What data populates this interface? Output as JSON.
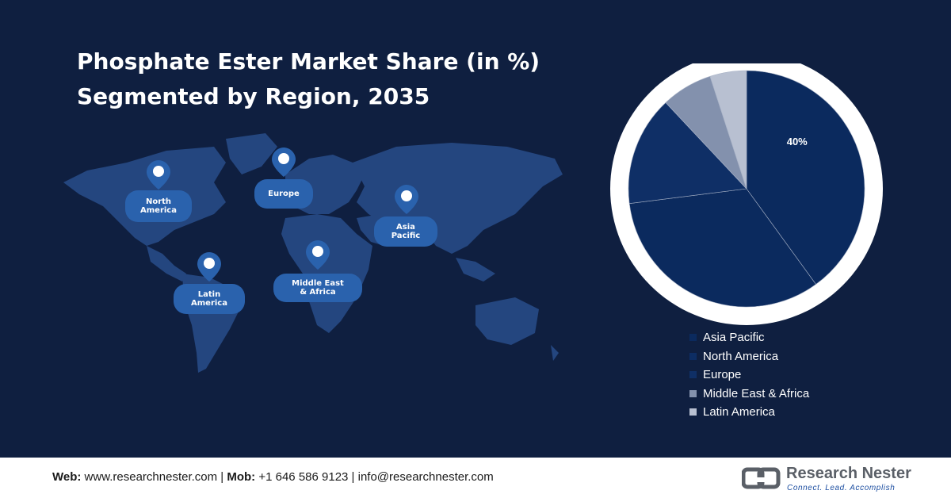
{
  "title_line1": "Phosphate Ester Market Share (in %)",
  "title_line2": "Segmented by Region, 2035",
  "map_labels": {
    "north_america": "North\nAmerica",
    "europe": "Europe",
    "asia_pacific": "Asia\nPacific",
    "middle_east_africa": "Middle East\n& Africa",
    "latin_america": "Latin\nAmerica"
  },
  "chart_data": {
    "type": "pie",
    "title": "Phosphate Ester Market Share (in %) Segmented by Region, 2035",
    "categories": [
      "Asia Pacific",
      "North America",
      "Europe",
      "Middle East & Africa",
      "Latin America"
    ],
    "values": [
      40,
      33,
      15,
      7,
      5
    ],
    "data_labels": [
      "40%",
      "",
      "",
      "",
      ""
    ],
    "colors": [
      "#0b2a5e",
      "#0b2a5e",
      "#0f2f66",
      "#8391ad",
      "#b8c0d1"
    ],
    "legend_position": "bottom-right"
  },
  "legend": {
    "items": [
      "Asia Pacific",
      "North America",
      "Europe",
      "Middle East & Africa",
      "Latin America"
    ],
    "colors": [
      "#0b2a5e",
      "#0d2d63",
      "#0f2f66",
      "#8391ad",
      "#b8c0d1"
    ]
  },
  "footer": {
    "web_label": "Web:",
    "web_value": " www.researchnester.com | ",
    "mob_label": "Mob:",
    "mob_value": " +1 646 586 9123 | info@researchnester.com",
    "logo_name": "Research Nester",
    "logo_tagline": "Connect. Lead. Accomplish"
  }
}
